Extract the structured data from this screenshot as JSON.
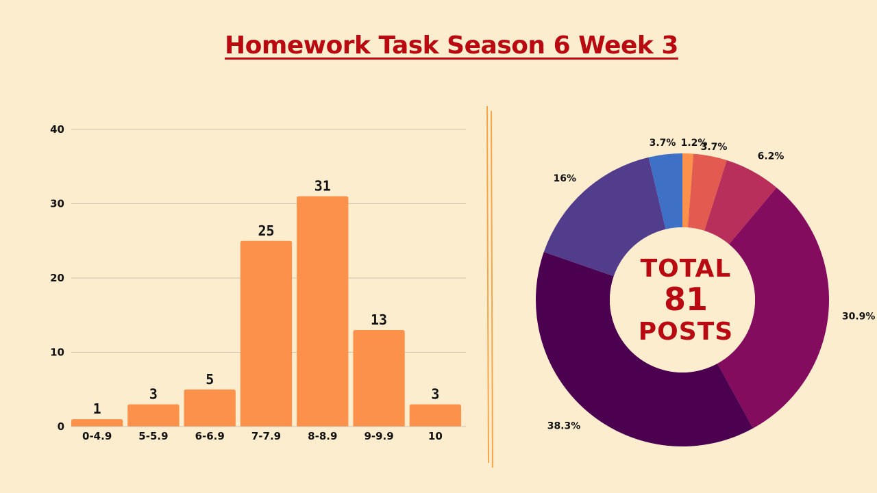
{
  "title": "Homework Task Season 6 Week 3",
  "center": {
    "line1": "TOTAL",
    "line2": "81",
    "line3": "POSTS"
  },
  "chart_data": [
    {
      "type": "bar",
      "categories": [
        "0-4.9",
        "5-5.9",
        "6-6.9",
        "7-7.9",
        "8-8.9",
        "9-9.9",
        "10"
      ],
      "values": [
        1,
        3,
        5,
        25,
        31,
        13,
        3
      ],
      "ylim": [
        0,
        40
      ],
      "yticks": [
        0,
        10,
        20,
        30,
        40
      ],
      "grid": true,
      "bar_color": "#fb914b"
    },
    {
      "type": "pie",
      "donut": true,
      "slices": [
        {
          "label": "1.2%",
          "value": 1.2,
          "color": "#fb914b"
        },
        {
          "label": "3.7%",
          "value": 3.7,
          "color": "#e35a50"
        },
        {
          "label": "6.2%",
          "value": 6.2,
          "color": "#b72f5a"
        },
        {
          "label": "30.9%",
          "value": 30.9,
          "color": "#840c5e"
        },
        {
          "label": "38.3%",
          "value": 38.3,
          "color": "#4b0050"
        },
        {
          "label": "16%",
          "value": 16.0,
          "color": "#523c8c"
        },
        {
          "label": "3.7%",
          "value": 3.7,
          "color": "#3e70c6"
        }
      ]
    }
  ]
}
